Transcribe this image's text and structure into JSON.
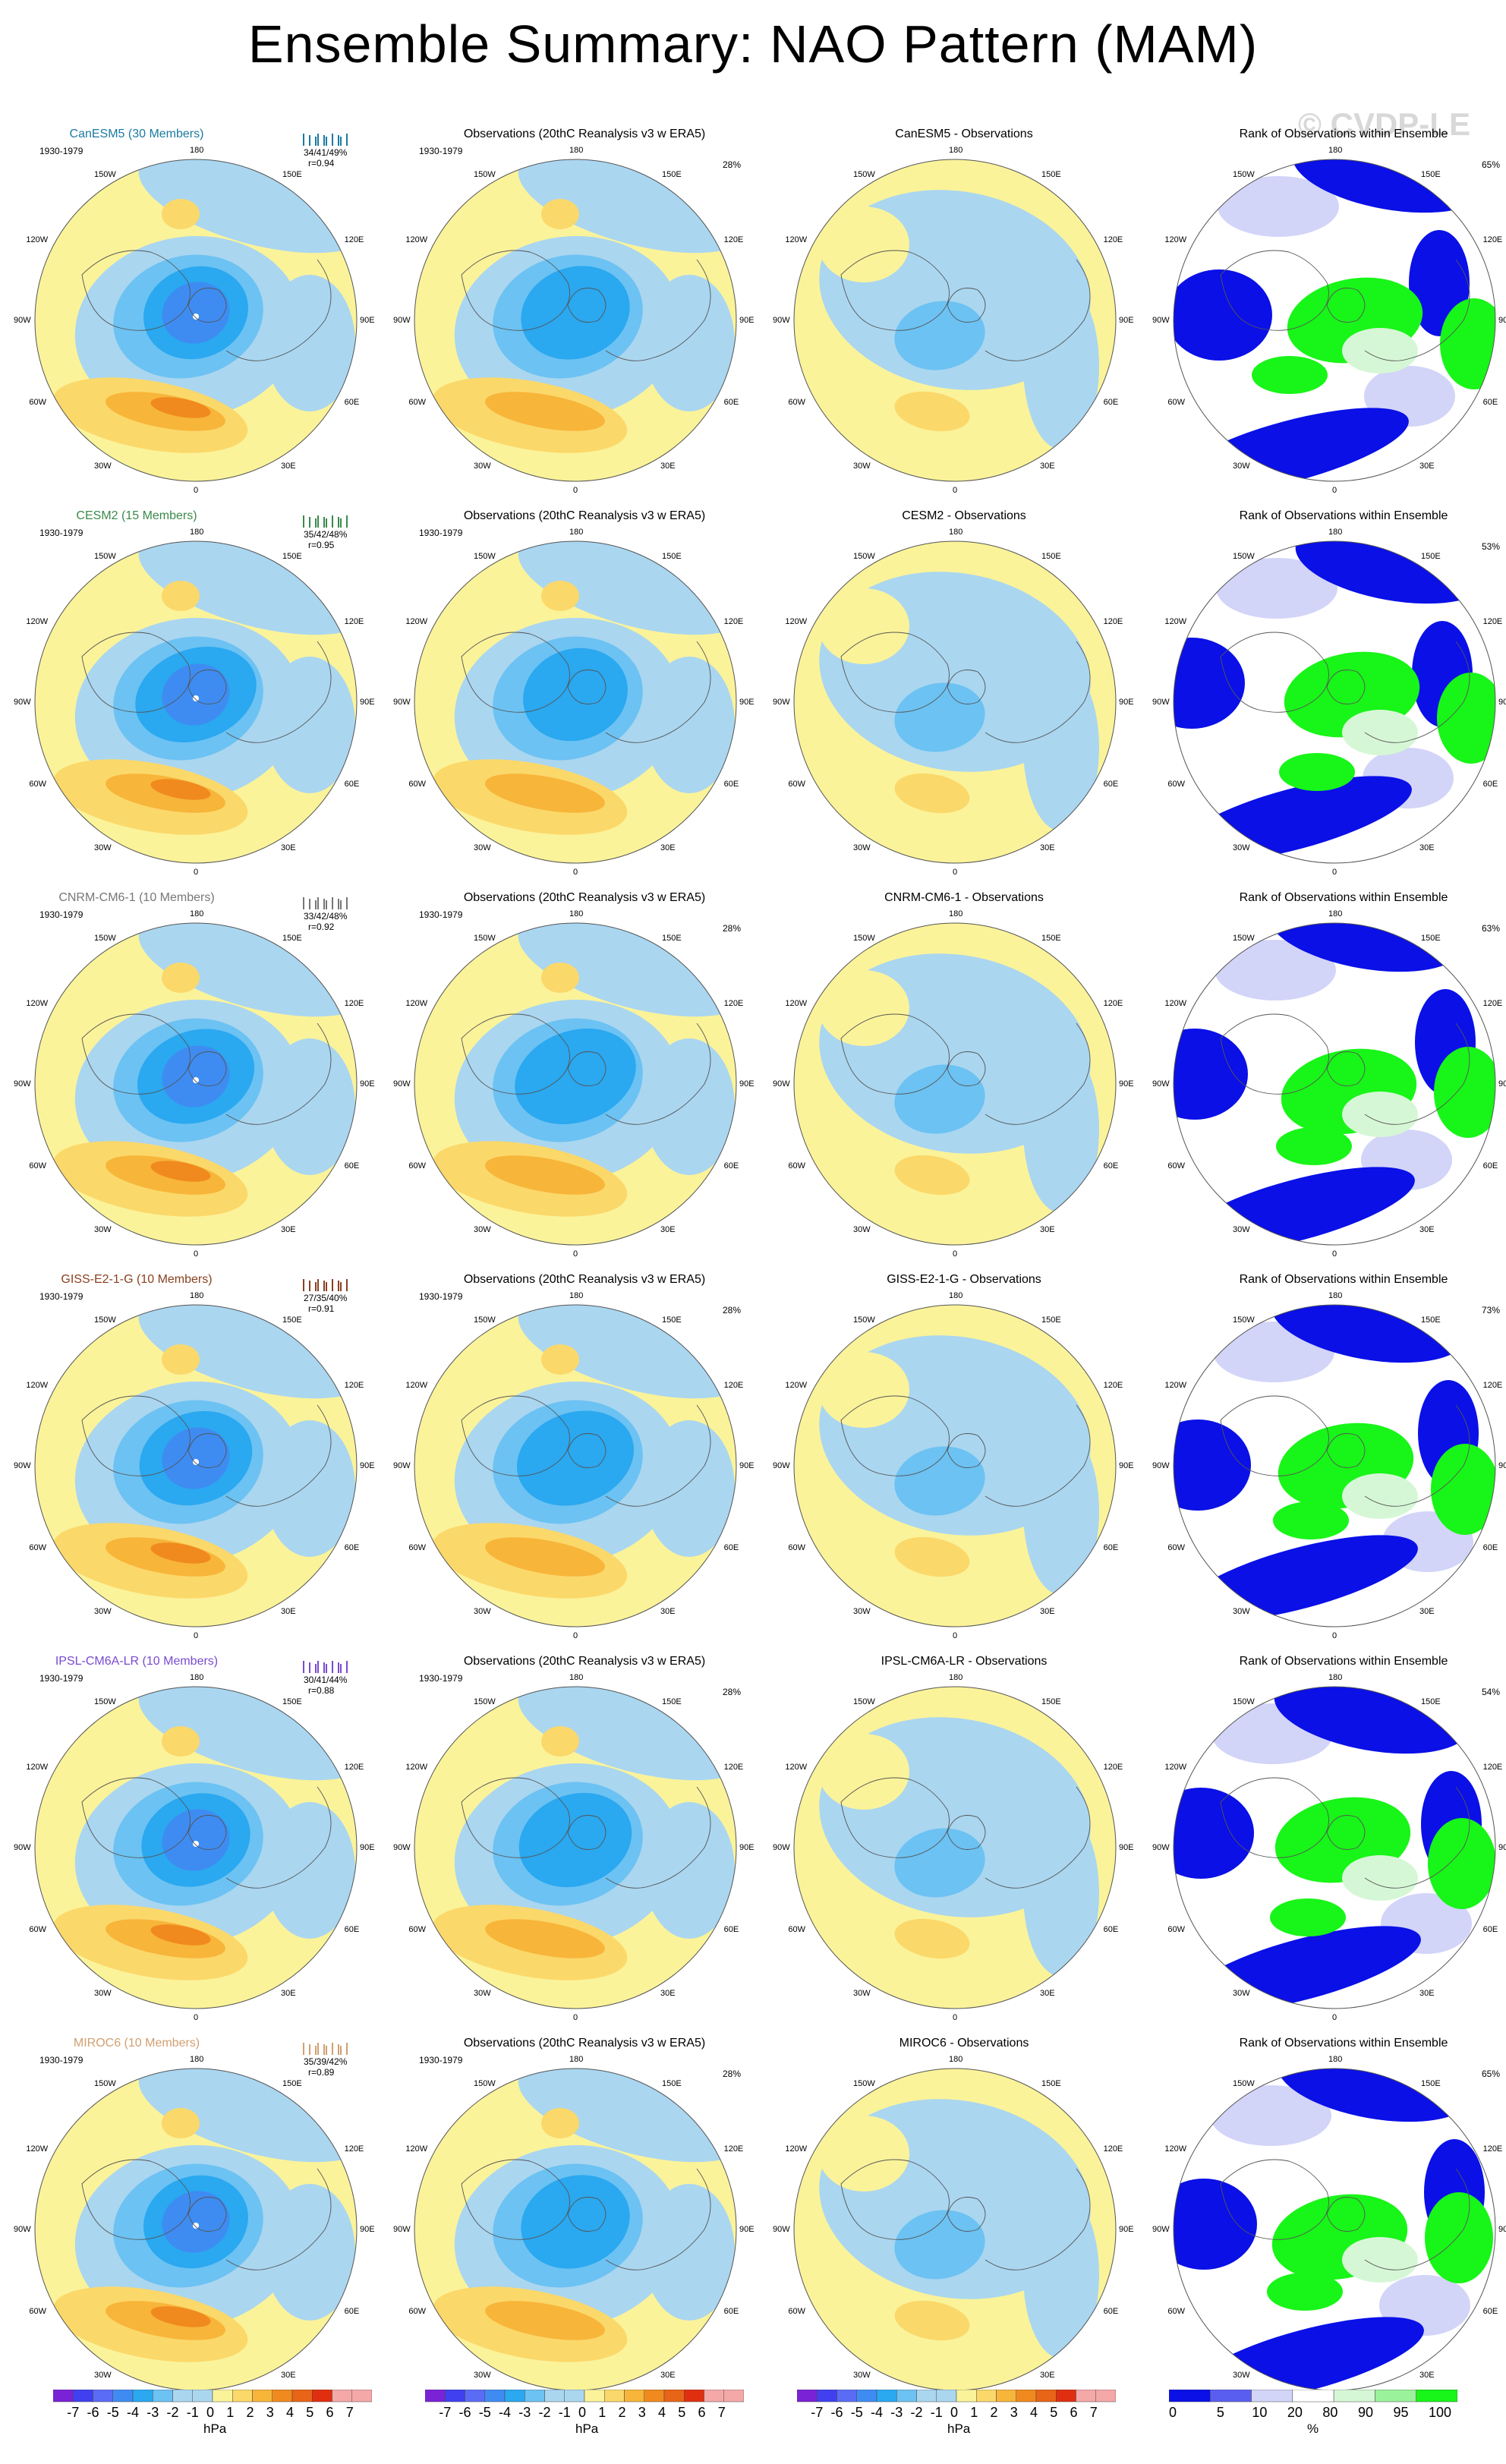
{
  "title": "Ensemble Summary: NAO Pattern (MAM)",
  "watermark": "© CVDP-LE",
  "period": "1930-1979",
  "lon_labels": {
    "n": "180",
    "nw": "150W",
    "ne": "150E",
    "wnw": "120W",
    "ene": "120E",
    "w": "90W",
    "e": "90E",
    "wsw": "60W",
    "ese": "60E",
    "sw": "30W",
    "se": "30E",
    "s": "0"
  },
  "colors": {
    "neg7": "#7a22d6",
    "neg6": "#4040f0",
    "neg5": "#5a6cf5",
    "neg4": "#3e8cf2",
    "neg3": "#2aa8f0",
    "neg2": "#6cc2f2",
    "neg1": "#aad6f0",
    "pos1": "#fbf39a",
    "pos2": "#fbd86a",
    "pos3": "#f7b53a",
    "pos4": "#f08a1e",
    "pos5": "#e86416",
    "pos6": "#e02f10",
    "pos7": "#f5a8a8",
    "rank_blue": "#0a10e6",
    "rank_lavender": "#d2d4f8",
    "rank_mint": "#d6f7d6",
    "rank_green": "#18f518"
  },
  "obs_title": "Observations (20thC Reanalysis v3 w ERA5)",
  "rank_title": "Rank of Observations within Ensemble",
  "rows": [
    {
      "model": "CanESM5 (30 Members)",
      "model_color": "#1a7aa0",
      "stats": "34/41/49%",
      "r": "r=0.94",
      "obs_pct": "28%",
      "diff_title": "CanESM5 - Observations",
      "rank_pct": "65%"
    },
    {
      "model": "CESM2 (15 Members)",
      "model_color": "#3a8a4a",
      "stats": "35/42/48%",
      "r": "r=0.95",
      "obs_pct": "",
      "diff_title": "CESM2 - Observations",
      "rank_pct": "53%"
    },
    {
      "model": "CNRM-CM6-1 (10 Members)",
      "model_color": "#777777",
      "stats": "33/42/48%",
      "r": "r=0.92",
      "obs_pct": "28%",
      "diff_title": "CNRM-CM6-1 - Observations",
      "rank_pct": "63%"
    },
    {
      "model": "GISS-E2-1-G (10 Members)",
      "model_color": "#8a4020",
      "stats": "27/35/40%",
      "r": "r=0.91",
      "obs_pct": "28%",
      "diff_title": "GISS-E2-1-G - Observations",
      "rank_pct": "73%"
    },
    {
      "model": "IPSL-CM6A-LR (10 Members)",
      "model_color": "#7a4ad0",
      "stats": "30/41/44%",
      "r": "r=0.88",
      "obs_pct": "28%",
      "diff_title": "IPSL-CM6A-LR - Observations",
      "rank_pct": "54%"
    },
    {
      "model": "MIROC6 (10 Members)",
      "model_color": "#d0a070",
      "stats": "35/39/42%",
      "r": "r=0.89",
      "obs_pct": "28%",
      "diff_title": "MIROC6 - Observations",
      "rank_pct": "65%"
    }
  ],
  "colorbar_hpa": {
    "labels": [
      "-7",
      "-6",
      "-5",
      "-4",
      "-3",
      "-2",
      "-1",
      "0",
      "1",
      "2",
      "3",
      "4",
      "5",
      "6",
      "7"
    ],
    "unit": "hPa"
  },
  "colorbar_rank": {
    "labels": [
      "0",
      "5",
      "10",
      "20",
      "80",
      "90",
      "95",
      "100"
    ],
    "unit": "%"
  }
}
